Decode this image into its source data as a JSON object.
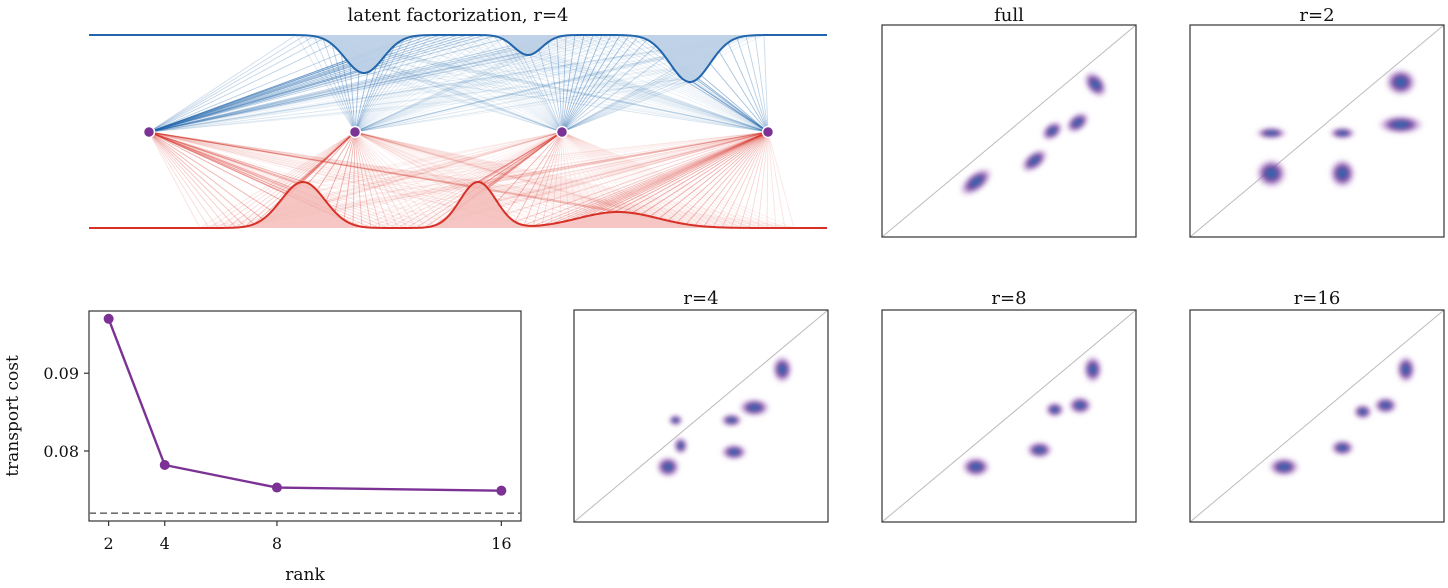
{
  "figure": {
    "colors": {
      "blue": "#2166ac",
      "blue_fill": "#bcd0e6",
      "red": "#d73027",
      "red_fill": "#f3bcb8",
      "purple": "#7b3294",
      "dashed": "#707070",
      "diag": "#bbbbbb",
      "axes": "#333333"
    },
    "top_panel": {
      "title": "latent factorization, r=4"
    },
    "heatmap_titles": {
      "full": "full",
      "r2": "r=2",
      "r4": "r=4",
      "r8": "r=8",
      "r16": "r=16"
    }
  },
  "chart_data": [
    {
      "type": "line",
      "title": "",
      "xlabel": "rank",
      "ylabel": "transport cost",
      "x": [
        2,
        4,
        8,
        16
      ],
      "xticks": [
        "2",
        "4",
        "8",
        "16"
      ],
      "xlim": [
        1.3,
        16.7
      ],
      "series": [
        {
          "values": [
            0.097,
            0.0782,
            0.0753,
            0.0749
          ]
        }
      ],
      "yticks": [
        0.08,
        0.09
      ],
      "ytick_labels": [
        "0.08",
        "0.09"
      ],
      "ylim": [
        0.071,
        0.098
      ],
      "reference_line": 0.072,
      "grid": false
    },
    {
      "type": "heatmap",
      "panels": [
        {
          "key": "full",
          "title": "full",
          "blobs": [
            {
              "x": 0.37,
              "y": 0.74,
              "w": 0.13,
              "h": 0.06,
              "kind": "diag"
            },
            {
              "x": 0.6,
              "y": 0.64,
              "w": 0.1,
              "h": 0.05,
              "kind": "diag"
            },
            {
              "x": 0.67,
              "y": 0.5,
              "w": 0.07,
              "h": 0.045,
              "kind": "diag"
            },
            {
              "x": 0.77,
              "y": 0.46,
              "w": 0.08,
              "h": 0.05,
              "kind": "diag"
            },
            {
              "x": 0.84,
              "y": 0.28,
              "w": 0.05,
              "h": 0.11,
              "kind": "diag"
            }
          ]
        },
        {
          "key": "r2",
          "title": "r=2",
          "blobs": [
            {
              "x": 0.32,
              "y": 0.7,
              "w": 0.1,
              "h": 0.11,
              "kind": "round"
            },
            {
              "x": 0.6,
              "y": 0.7,
              "w": 0.08,
              "h": 0.11,
              "kind": "round"
            },
            {
              "x": 0.32,
              "y": 0.51,
              "w": 0.1,
              "h": 0.025,
              "kind": "round"
            },
            {
              "x": 0.6,
              "y": 0.51,
              "w": 0.08,
              "h": 0.025,
              "kind": "round"
            },
            {
              "x": 0.83,
              "y": 0.47,
              "w": 0.16,
              "h": 0.06,
              "kind": "round"
            },
            {
              "x": 0.83,
              "y": 0.27,
              "w": 0.1,
              "h": 0.1,
              "kind": "round"
            }
          ]
        },
        {
          "key": "r4",
          "title": "r=4",
          "blobs": [
            {
              "x": 0.37,
              "y": 0.74,
              "w": 0.07,
              "h": 0.07,
              "kind": "round"
            },
            {
              "x": 0.42,
              "y": 0.64,
              "w": 0.03,
              "h": 0.05,
              "kind": "round"
            },
            {
              "x": 0.63,
              "y": 0.67,
              "w": 0.08,
              "h": 0.045,
              "kind": "round"
            },
            {
              "x": 0.62,
              "y": 0.52,
              "w": 0.06,
              "h": 0.03,
              "kind": "round"
            },
            {
              "x": 0.71,
              "y": 0.46,
              "w": 0.1,
              "h": 0.055,
              "kind": "round"
            },
            {
              "x": 0.82,
              "y": 0.28,
              "w": 0.055,
              "h": 0.1,
              "kind": "round"
            },
            {
              "x": 0.4,
              "y": 0.52,
              "w": 0.03,
              "h": 0.02,
              "kind": "round"
            }
          ]
        },
        {
          "key": "r8",
          "title": "r=8",
          "blobs": [
            {
              "x": 0.37,
              "y": 0.74,
              "w": 0.09,
              "h": 0.065,
              "kind": "round"
            },
            {
              "x": 0.62,
              "y": 0.66,
              "w": 0.08,
              "h": 0.05,
              "kind": "round"
            },
            {
              "x": 0.68,
              "y": 0.47,
              "w": 0.05,
              "h": 0.04,
              "kind": "round"
            },
            {
              "x": 0.78,
              "y": 0.45,
              "w": 0.07,
              "h": 0.055,
              "kind": "round"
            },
            {
              "x": 0.83,
              "y": 0.28,
              "w": 0.05,
              "h": 0.1,
              "kind": "round"
            }
          ]
        },
        {
          "key": "r16",
          "title": "r=16",
          "blobs": [
            {
              "x": 0.37,
              "y": 0.74,
              "w": 0.1,
              "h": 0.06,
              "kind": "round"
            },
            {
              "x": 0.6,
              "y": 0.65,
              "w": 0.07,
              "h": 0.045,
              "kind": "round"
            },
            {
              "x": 0.68,
              "y": 0.48,
              "w": 0.05,
              "h": 0.04,
              "kind": "round"
            },
            {
              "x": 0.77,
              "y": 0.45,
              "w": 0.07,
              "h": 0.05,
              "kind": "round"
            },
            {
              "x": 0.85,
              "y": 0.28,
              "w": 0.05,
              "h": 0.1,
              "kind": "round"
            }
          ]
        }
      ]
    }
  ]
}
